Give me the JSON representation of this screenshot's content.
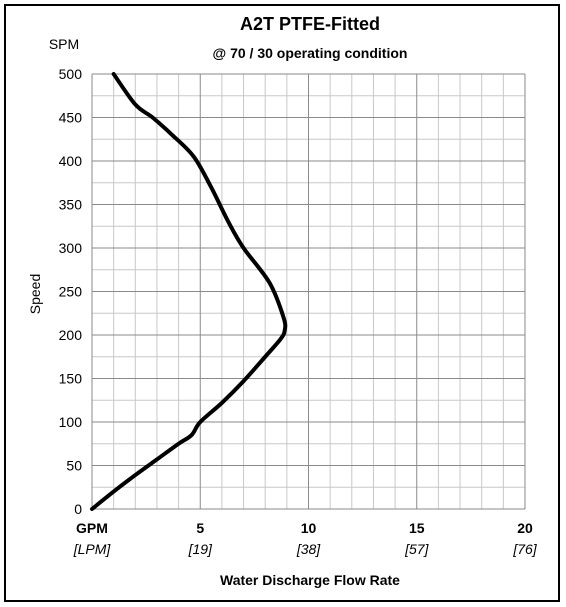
{
  "chart_data": {
    "type": "line",
    "title": "A2T PTFE-Fitted",
    "subtitle": "@ 70 / 30 operating condition",
    "ylabel": "Speed",
    "y_unit": "SPM",
    "xlabel": "Water Discharge Flow Rate",
    "x_unit_primary": "GPM",
    "x_unit_secondary": "[LPM]",
    "xlim": [
      0,
      20
    ],
    "ylim": [
      0,
      500
    ],
    "x_ticks": [
      {
        "primary": "5",
        "secondary": "[19]",
        "value": 5
      },
      {
        "primary": "10",
        "secondary": "[38]",
        "value": 10
      },
      {
        "primary": "15",
        "secondary": "[57]",
        "value": 15
      },
      {
        "primary": "20",
        "secondary": "[76]",
        "value": 20
      }
    ],
    "y_ticks": [
      "0",
      "50",
      "100",
      "150",
      "200",
      "250",
      "300",
      "350",
      "400",
      "450",
      "500"
    ],
    "grid": true,
    "series": [
      {
        "x": [
          0.0,
          1.0,
          2.0,
          3.0,
          4.0,
          4.6,
          5.0,
          6.0,
          7.0,
          8.0,
          8.7,
          8.9,
          8.85,
          8.2,
          7.0,
          6.3,
          5.5,
          4.7,
          3.7,
          2.8,
          2.0,
          1.0
        ],
        "y": [
          0,
          20,
          39,
          57,
          75,
          85,
          100,
          122,
          147,
          175,
          195,
          205,
          220,
          260,
          300,
          330,
          370,
          405,
          430,
          450,
          465,
          500
        ]
      }
    ]
  }
}
